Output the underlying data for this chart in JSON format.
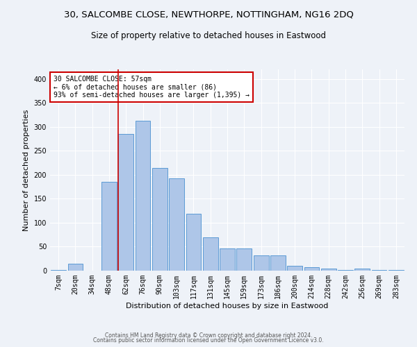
{
  "title": "30, SALCOMBE CLOSE, NEWTHORPE, NOTTINGHAM, NG16 2DQ",
  "subtitle": "Size of property relative to detached houses in Eastwood",
  "xlabel": "Distribution of detached houses by size in Eastwood",
  "ylabel": "Number of detached properties",
  "categories": [
    "7sqm",
    "20sqm",
    "34sqm",
    "48sqm",
    "62sqm",
    "76sqm",
    "90sqm",
    "103sqm",
    "117sqm",
    "131sqm",
    "145sqm",
    "159sqm",
    "173sqm",
    "186sqm",
    "200sqm",
    "214sqm",
    "228sqm",
    "242sqm",
    "256sqm",
    "269sqm",
    "283sqm"
  ],
  "values": [
    2,
    14,
    0,
    185,
    285,
    313,
    215,
    193,
    119,
    69,
    46,
    46,
    32,
    32,
    10,
    7,
    5,
    2,
    5,
    2,
    2
  ],
  "bar_color": "#aec6e8",
  "bar_edge_color": "#5b9bd5",
  "vline_color": "#cc0000",
  "vline_pos": 3.55,
  "annotation_text": "30 SALCOMBE CLOSE: 57sqm\n← 6% of detached houses are smaller (86)\n93% of semi-detached houses are larger (1,395) →",
  "annotation_box_color": "#ffffff",
  "annotation_box_edge": "#cc0000",
  "ylim": [
    0,
    420
  ],
  "yticks": [
    0,
    50,
    100,
    150,
    200,
    250,
    300,
    350,
    400
  ],
  "footer1": "Contains HM Land Registry data © Crown copyright and database right 2024.",
  "footer2": "Contains public sector information licensed under the Open Government Licence v3.0.",
  "bg_color": "#eef2f8",
  "plot_bg_color": "#eef2f8",
  "grid_color": "#ffffff",
  "title_fontsize": 9.5,
  "subtitle_fontsize": 8.5,
  "tick_fontsize": 7,
  "ylabel_fontsize": 8,
  "xlabel_fontsize": 8,
  "annotation_fontsize": 7,
  "footer_fontsize": 5.5
}
